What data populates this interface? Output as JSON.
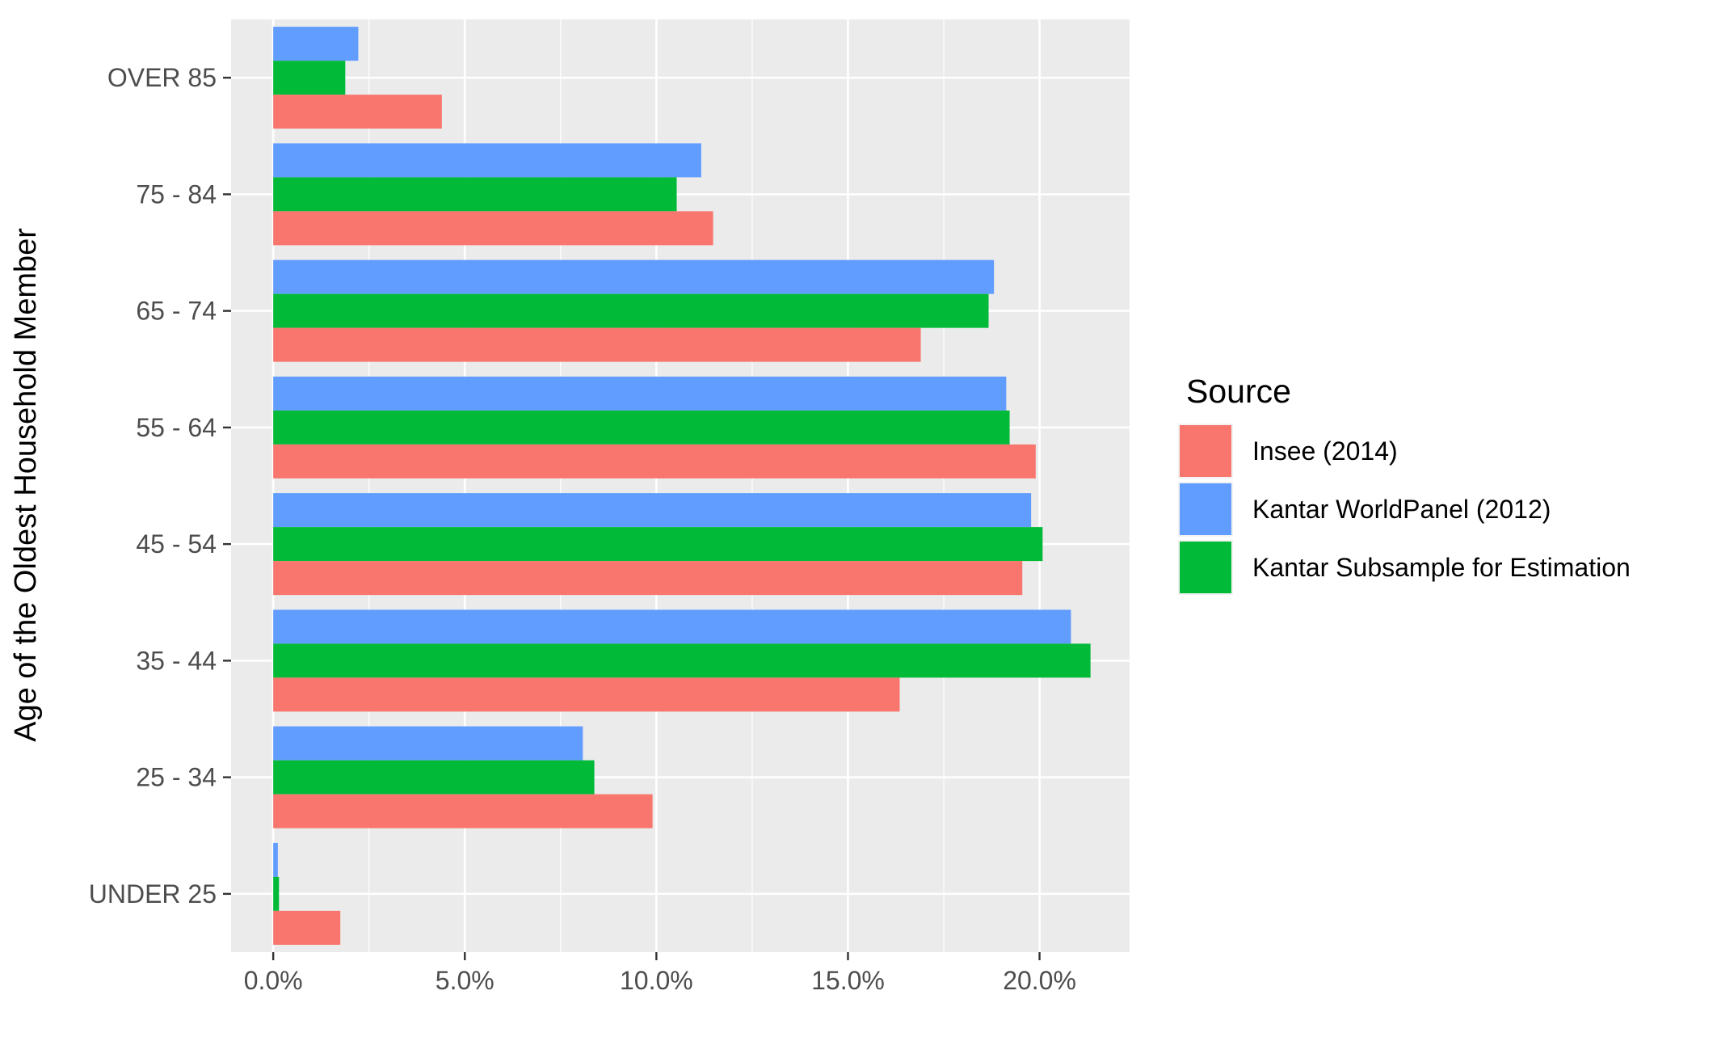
{
  "chart_data": {
    "type": "bar",
    "orientation": "horizontal",
    "title": "",
    "xlabel": "",
    "ylabel": "Age of the Oldest Household Member",
    "xlim": [
      -0.011,
      0.2235
    ],
    "x_ticks": [
      0,
      0.05,
      0.1,
      0.15,
      0.2
    ],
    "x_tick_labels": [
      "0.0%",
      "5.0%",
      "10.0%",
      "15.0%",
      "20.0%"
    ],
    "grid": true,
    "categories": [
      "UNDER 25",
      "25 - 34",
      "35 - 44",
      "45 - 54",
      "55 - 64",
      "65 - 74",
      "75 - 84",
      "OVER 85"
    ],
    "series": [
      {
        "name": "Insee (2014)",
        "color": "#F8766D",
        "values": [
          0.0175,
          0.099,
          0.1635,
          0.1955,
          0.199,
          0.169,
          0.1148,
          0.044
        ]
      },
      {
        "name": "Kantar WorldPanel (2012)",
        "color": "#619CFF",
        "values": [
          0.0012,
          0.0808,
          0.2082,
          0.1978,
          0.1913,
          0.1881,
          0.1117,
          0.0222
        ]
      },
      {
        "name": "Kantar Subsample for Estimation",
        "color": "#00BA38",
        "values": [
          0.0015,
          0.0838,
          0.2133,
          0.2008,
          0.1922,
          0.1867,
          0.1053,
          0.0188
        ]
      }
    ],
    "legend": {
      "title": "Source",
      "placement": "right",
      "items": [
        {
          "label": "Insee (2014)",
          "color": "#F8766D"
        },
        {
          "label": "Kantar WorldPanel (2012)",
          "color": "#619CFF"
        },
        {
          "label": "Kantar Subsample for Estimation",
          "color": "#00BA38"
        }
      ]
    },
    "panel_background": "#EBEBEB",
    "grid_color": "#FFFFFF"
  }
}
